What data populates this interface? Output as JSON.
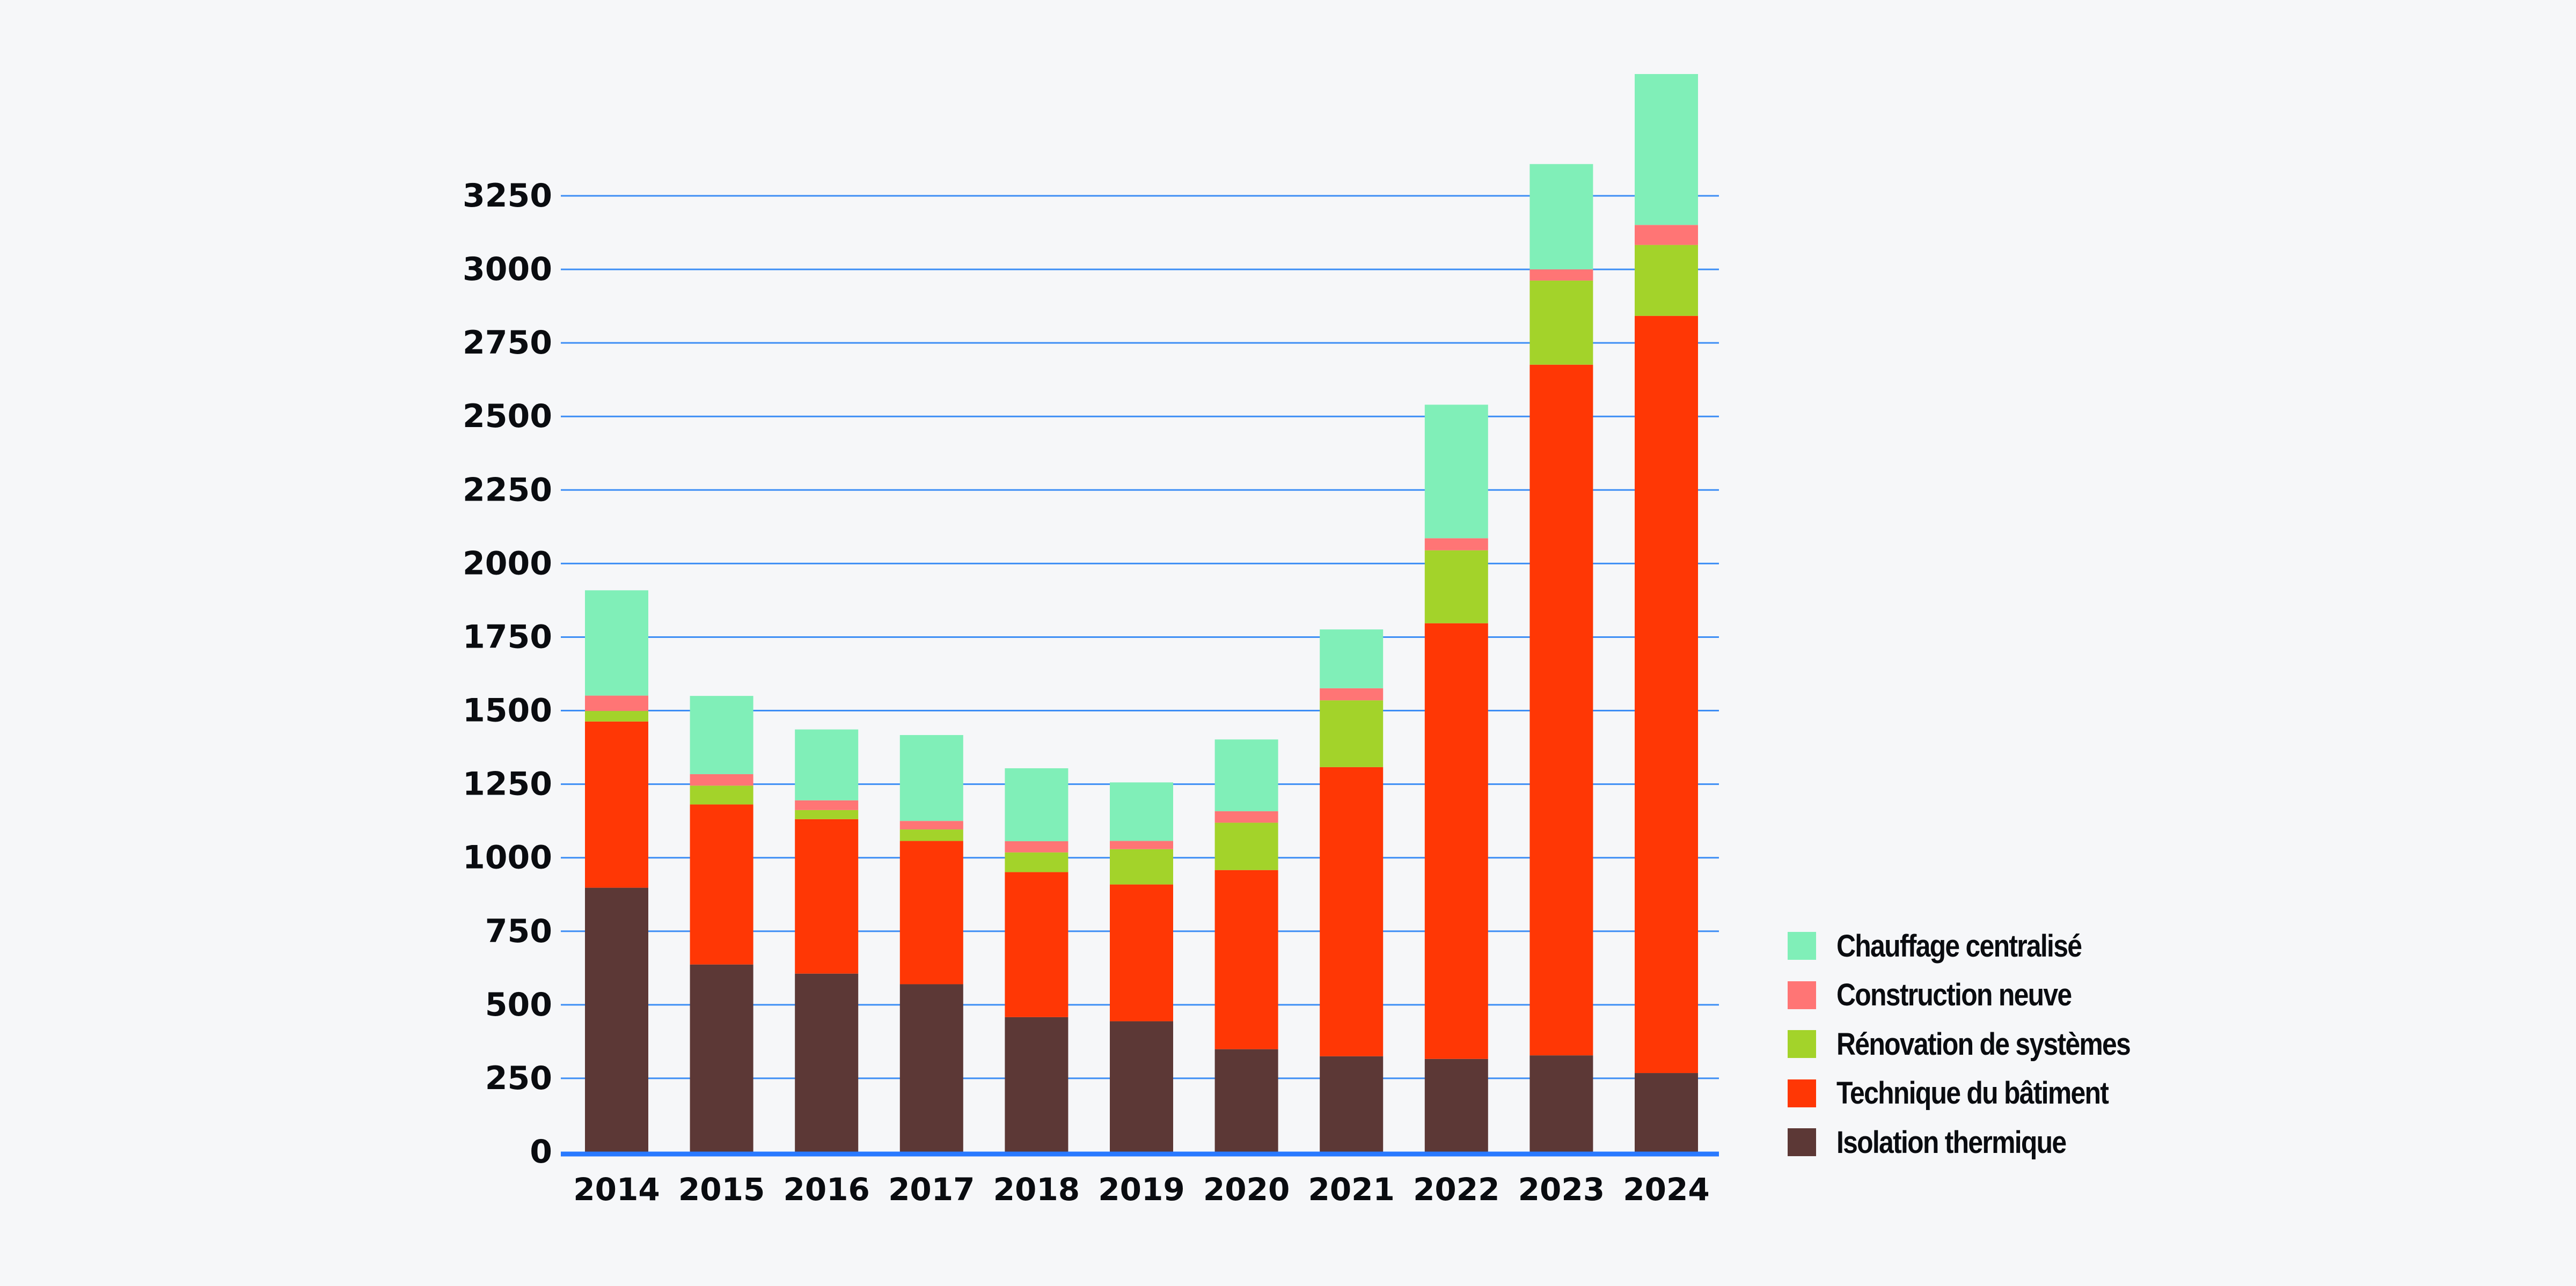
{
  "chart_data": {
    "type": "bar",
    "stacked": true,
    "title": "",
    "xlabel": "",
    "ylabel": "",
    "categories": [
      "2014",
      "2015",
      "2016",
      "2017",
      "2018",
      "2019",
      "2020",
      "2021",
      "2022",
      "2023",
      "2024"
    ],
    "ylim": [
      0,
      3700
    ],
    "yticks": [
      0,
      250,
      500,
      750,
      1000,
      1250,
      1500,
      1750,
      2000,
      2250,
      2500,
      2750,
      3000,
      3250
    ],
    "grid": true,
    "legend_position": "bottom-right",
    "series": [
      {
        "name": "Isolation thermique",
        "color": "#5c3836",
        "values": [
          898,
          637,
          606,
          570,
          458,
          444,
          349,
          325,
          316,
          328,
          268
        ]
      },
      {
        "name": "Technique du bâtiment",
        "color": "#ff3705",
        "values": [
          565,
          544,
          525,
          487,
          493,
          465,
          609,
          983,
          1481,
          2348,
          2574
        ]
      },
      {
        "name": "Rénovation de systèmes",
        "color": "#a3d32a",
        "values": [
          36,
          64,
          31,
          39,
          67,
          120,
          161,
          227,
          248,
          286,
          241
        ]
      },
      {
        "name": "Construction neuve",
        "color": "#ff7575",
        "values": [
          52,
          39,
          33,
          29,
          38,
          28,
          39,
          41,
          41,
          38,
          68
        ]
      },
      {
        "name": "Chauffage centralisé",
        "color": "#80efb8",
        "values": [
          358,
          266,
          241,
          292,
          248,
          199,
          244,
          200,
          454,
          358,
          513
        ]
      }
    ],
    "legend_order": [
      "Chauffage centralisé",
      "Construction neuve",
      "Rénovation de systèmes",
      "Technique du bâtiment",
      "Isolation thermique"
    ]
  },
  "colors": {
    "background": "#f6f7f9",
    "gridline": "#3d8ef5",
    "axis": "#2979ff",
    "text": "#0a0c10"
  }
}
